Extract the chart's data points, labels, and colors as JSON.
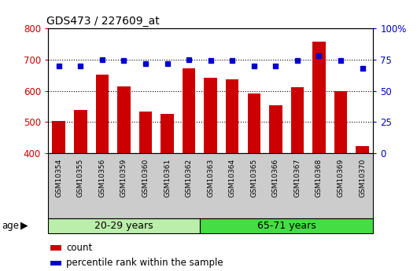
{
  "title": "GDS473 / 227609_at",
  "samples": [
    "GSM10354",
    "GSM10355",
    "GSM10356",
    "GSM10359",
    "GSM10360",
    "GSM10361",
    "GSM10362",
    "GSM10363",
    "GSM10364",
    "GSM10365",
    "GSM10366",
    "GSM10367",
    "GSM10368",
    "GSM10369",
    "GSM10370"
  ],
  "counts": [
    503,
    538,
    653,
    615,
    533,
    527,
    673,
    643,
    636,
    592,
    554,
    612,
    758,
    598,
    423
  ],
  "percentile_ranks": [
    70,
    70,
    75,
    74,
    72,
    72,
    75,
    74,
    74,
    70,
    70,
    74,
    78,
    74,
    68
  ],
  "group1_label": "20-29 years",
  "group2_label": "65-71 years",
  "group1_count": 7,
  "group2_count": 8,
  "ylim_left": [
    400,
    800
  ],
  "ylim_right": [
    0,
    100
  ],
  "yticks_left": [
    400,
    500,
    600,
    700,
    800
  ],
  "yticks_right": [
    0,
    25,
    50,
    75,
    100
  ],
  "yticklabels_right": [
    "0",
    "25",
    "50",
    "75",
    "100%"
  ],
  "bar_color": "#cc0000",
  "dot_color": "#0000cc",
  "group1_bg": "#bbeeaa",
  "group2_bg": "#44dd44",
  "tick_bg": "#cccccc",
  "age_label": "age",
  "legend_count_label": "count",
  "legend_pct_label": "percentile rank within the sample",
  "plot_bg": "#ffffff"
}
